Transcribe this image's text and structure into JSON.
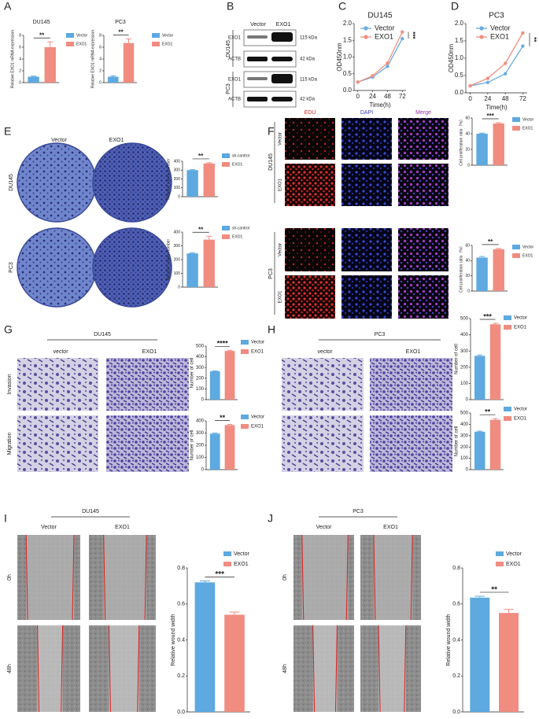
{
  "figure": {
    "panel_labels": [
      "A",
      "B",
      "C",
      "D",
      "E",
      "F",
      "G",
      "H",
      "I",
      "J"
    ],
    "blot": {
      "columns": [
        "Vector",
        "EXO1"
      ],
      "groups": [
        "DU145",
        "PC3"
      ],
      "bands": [
        "EXO1",
        "ACTB",
        "EXO1",
        "ACTB"
      ],
      "sizes": [
        "115 kDa",
        "42 kDa",
        "115 kDa",
        "42 kDa"
      ]
    },
    "colony": {
      "columns": [
        "Vector",
        "EXO1"
      ],
      "rows": [
        "DU145",
        "PC3"
      ]
    },
    "edu": {
      "columns": [
        "EDU",
        "DAPI",
        "Merge"
      ],
      "groups": [
        "DU145",
        "PC3"
      ],
      "rows": [
        "Vector",
        "EXO1",
        "Vector",
        "EXO1"
      ]
    },
    "transwell_du145": {
      "title": "DU145",
      "columns": [
        "vector",
        "EXO1"
      ],
      "rows": [
        "Invasion",
        "Migration"
      ]
    },
    "transwell_pc3": {
      "title": "PC3",
      "columns": [
        "vector",
        "EXO1"
      ]
    },
    "wound_du145": {
      "title": "DU145",
      "columns": [
        "Vector",
        "EXO1"
      ],
      "rows": [
        "0h",
        "48h"
      ]
    },
    "wound_pc3": {
      "title": "PC3",
      "columns": [
        "Vector",
        "EXO1"
      ],
      "rows": [
        "0h",
        "48h"
      ]
    }
  },
  "chart_data": [
    {
      "type": "bar",
      "title": "DU145",
      "ylabel": "Relative EXO1 mRNA expression",
      "categories": [
        "Vector",
        "EXO1"
      ],
      "values": [
        1,
        6
      ],
      "errors": [
        0.1,
        0.9
      ],
      "colors": [
        "#5da9e0",
        "#f08c80"
      ],
      "significance": "**",
      "ylim": [
        0,
        8
      ],
      "yticks": [
        0,
        2,
        4,
        6,
        8
      ]
    },
    {
      "type": "bar",
      "title": "PC3",
      "ylabel": "Relative EXO1 mRNA expression",
      "categories": [
        "Vector",
        "EXO1"
      ],
      "values": [
        1,
        6.7
      ],
      "errors": [
        0.15,
        0.7
      ],
      "colors": [
        "#5da9e0",
        "#f08c80"
      ],
      "significance": "**",
      "ylim": [
        0,
        8
      ],
      "yticks": [
        0,
        2,
        4,
        6,
        8
      ]
    },
    {
      "type": "line",
      "title": "DU145",
      "ylabel": "OD450nm",
      "xlabel": "Time(h)",
      "x": [
        0,
        24,
        48,
        72
      ],
      "xlim": [
        -6,
        78
      ],
      "xticks": [
        0,
        24,
        48,
        72
      ],
      "ylim": [
        0,
        2.0
      ],
      "yticks": [
        {
          "value": 0,
          "label": "0.0"
        },
        {
          "value": 0.5,
          "label": "0.5"
        },
        {
          "value": 1.0,
          "label": "1.0"
        },
        {
          "value": 1.5,
          "label": "1.5"
        },
        {
          "value": 2.0,
          "label": "2.0"
        }
      ],
      "significance": "***",
      "series": [
        {
          "name": "Vector",
          "color": "#6aabe0",
          "values": [
            0.25,
            0.4,
            0.72,
            1.55
          ]
        },
        {
          "name": "EXO1",
          "color": "#f0907f",
          "values": [
            0.25,
            0.44,
            0.82,
            1.75
          ]
        }
      ]
    },
    {
      "type": "line",
      "title": "PC3",
      "ylabel": "OD450nm",
      "xlabel": "Time(h)",
      "x": [
        0,
        24,
        48,
        72
      ],
      "xlim": [
        -6,
        78
      ],
      "xticks": [
        0,
        24,
        48,
        72
      ],
      "ylim": [
        0,
        2.0
      ],
      "yticks": [
        {
          "value": 0,
          "label": "0.0"
        },
        {
          "value": 0.5,
          "label": "0.5"
        },
        {
          "value": 1.0,
          "label": "1.0"
        },
        {
          "value": 1.5,
          "label": "1.5"
        },
        {
          "value": 2.0,
          "label": "2.0"
        }
      ],
      "significance": "**",
      "series": [
        {
          "name": "Vector",
          "color": "#6aabe0",
          "values": [
            0.2,
            0.3,
            0.55,
            1.35
          ]
        },
        {
          "name": "EXO1",
          "color": "#f0907f",
          "values": [
            0.2,
            0.42,
            0.85,
            1.73
          ]
        }
      ]
    },
    {
      "type": "bar",
      "ylabel": "Relative colony number",
      "categories": [
        "sh-control",
        "EXO1"
      ],
      "values": [
        300,
        375
      ],
      "errors": [
        5,
        8
      ],
      "colors": [
        "#5da9e0",
        "#f08c80"
      ],
      "significance": "**",
      "ylim": [
        0,
        400
      ],
      "yticks": [
        0,
        100,
        200,
        300,
        400
      ]
    },
    {
      "type": "bar",
      "ylabel": "Relative colony number",
      "categories": [
        "sh-control",
        "EXO1"
      ],
      "values": [
        245,
        345
      ],
      "errors": [
        5,
        25
      ],
      "colors": [
        "#5da9e0",
        "#f08c80"
      ],
      "significance": "**",
      "ylim": [
        0,
        400
      ],
      "yticks": [
        0,
        100,
        200,
        300,
        400
      ]
    },
    {
      "type": "bar",
      "ylabel": "Cell proliferation ratio（%）",
      "categories": [
        "Vector",
        "EXO1"
      ],
      "values": [
        40,
        53
      ],
      "errors": [
        0.8,
        1
      ],
      "colors": [
        "#5da9e0",
        "#f08c80"
      ],
      "significance": "***",
      "ylim": [
        0,
        60
      ],
      "yticks": [
        0,
        20,
        40,
        60
      ]
    },
    {
      "type": "bar",
      "ylabel": "Cell proliferation ratio（%）",
      "categories": [
        "Vector",
        "EXO1"
      ],
      "values": [
        44,
        55
      ],
      "errors": [
        1.5,
        1
      ],
      "colors": [
        "#5da9e0",
        "#f08c80"
      ],
      "significance": "**",
      "ylim": [
        0,
        60
      ],
      "yticks": [
        0,
        20,
        40,
        60
      ]
    },
    {
      "type": "bar",
      "ylabel": "Number of cell",
      "categories": [
        "Vector",
        "EXO1"
      ],
      "values": [
        265,
        455
      ],
      "errors": [
        4,
        6
      ],
      "colors": [
        "#5da9e0",
        "#f08c80"
      ],
      "significance": "****",
      "ylim": [
        0,
        500
      ],
      "yticks": [
        0,
        100,
        200,
        300,
        400,
        500
      ]
    },
    {
      "type": "bar",
      "ylabel": "Number of cell",
      "categories": [
        "Vector",
        "EXO1"
      ],
      "values": [
        295,
        365
      ],
      "errors": [
        5,
        6
      ],
      "colors": [
        "#5da9e0",
        "#f08c80"
      ],
      "significance": "**",
      "ylim": [
        0,
        400
      ],
      "yticks": [
        0,
        100,
        200,
        300,
        400
      ]
    },
    {
      "type": "bar",
      "ylabel": "Number of cell",
      "categories": [
        "Vector",
        "EXO1"
      ],
      "values": [
        270,
        465
      ],
      "errors": [
        6,
        6
      ],
      "colors": [
        "#5da9e0",
        "#f08c80"
      ],
      "significance": "***",
      "ylim": [
        0,
        500
      ],
      "yticks": [
        0,
        100,
        200,
        300,
        400,
        500
      ]
    },
    {
      "type": "bar",
      "ylabel": "Number of cell",
      "categories": [
        "Vector",
        "EXO1"
      ],
      "values": [
        335,
        440
      ],
      "errors": [
        5,
        10
      ],
      "colors": [
        "#5da9e0",
        "#f08c80"
      ],
      "significance": "**",
      "ylim": [
        0,
        500
      ],
      "yticks": [
        0,
        100,
        200,
        300,
        400,
        500
      ]
    },
    {
      "type": "bar",
      "ylabel": "Relative wound width",
      "categories": [
        "Vector",
        "EXO1"
      ],
      "values": [
        0.72,
        0.54
      ],
      "errors": [
        0.008,
        0.015
      ],
      "colors": [
        "#5da9e0",
        "#f08c80"
      ],
      "significance": "***",
      "ylim": [
        0,
        0.8
      ],
      "yticks": [
        {
          "value": 0,
          "label": "0.0"
        },
        {
          "value": 0.2,
          "label": "0.2"
        },
        {
          "value": 0.4,
          "label": "0.4"
        },
        {
          "value": 0.6,
          "label": "0.6"
        },
        {
          "value": 0.8,
          "label": "0.8"
        }
      ]
    },
    {
      "type": "bar",
      "ylabel": "Relative wound width",
      "categories": [
        "Vector",
        "EXO1"
      ],
      "values": [
        0.635,
        0.55
      ],
      "errors": [
        0.008,
        0.02
      ],
      "colors": [
        "#5da9e0",
        "#f08c80"
      ],
      "significance": "**",
      "ylim": [
        0,
        0.8
      ],
      "yticks": [
        {
          "value": 0,
          "label": "0.0"
        },
        {
          "value": 0.2,
          "label": "0.2"
        },
        {
          "value": 0.4,
          "label": "0.4"
        },
        {
          "value": 0.6,
          "label": "0.6"
        },
        {
          "value": 0.8,
          "label": "0.8"
        }
      ]
    }
  ]
}
